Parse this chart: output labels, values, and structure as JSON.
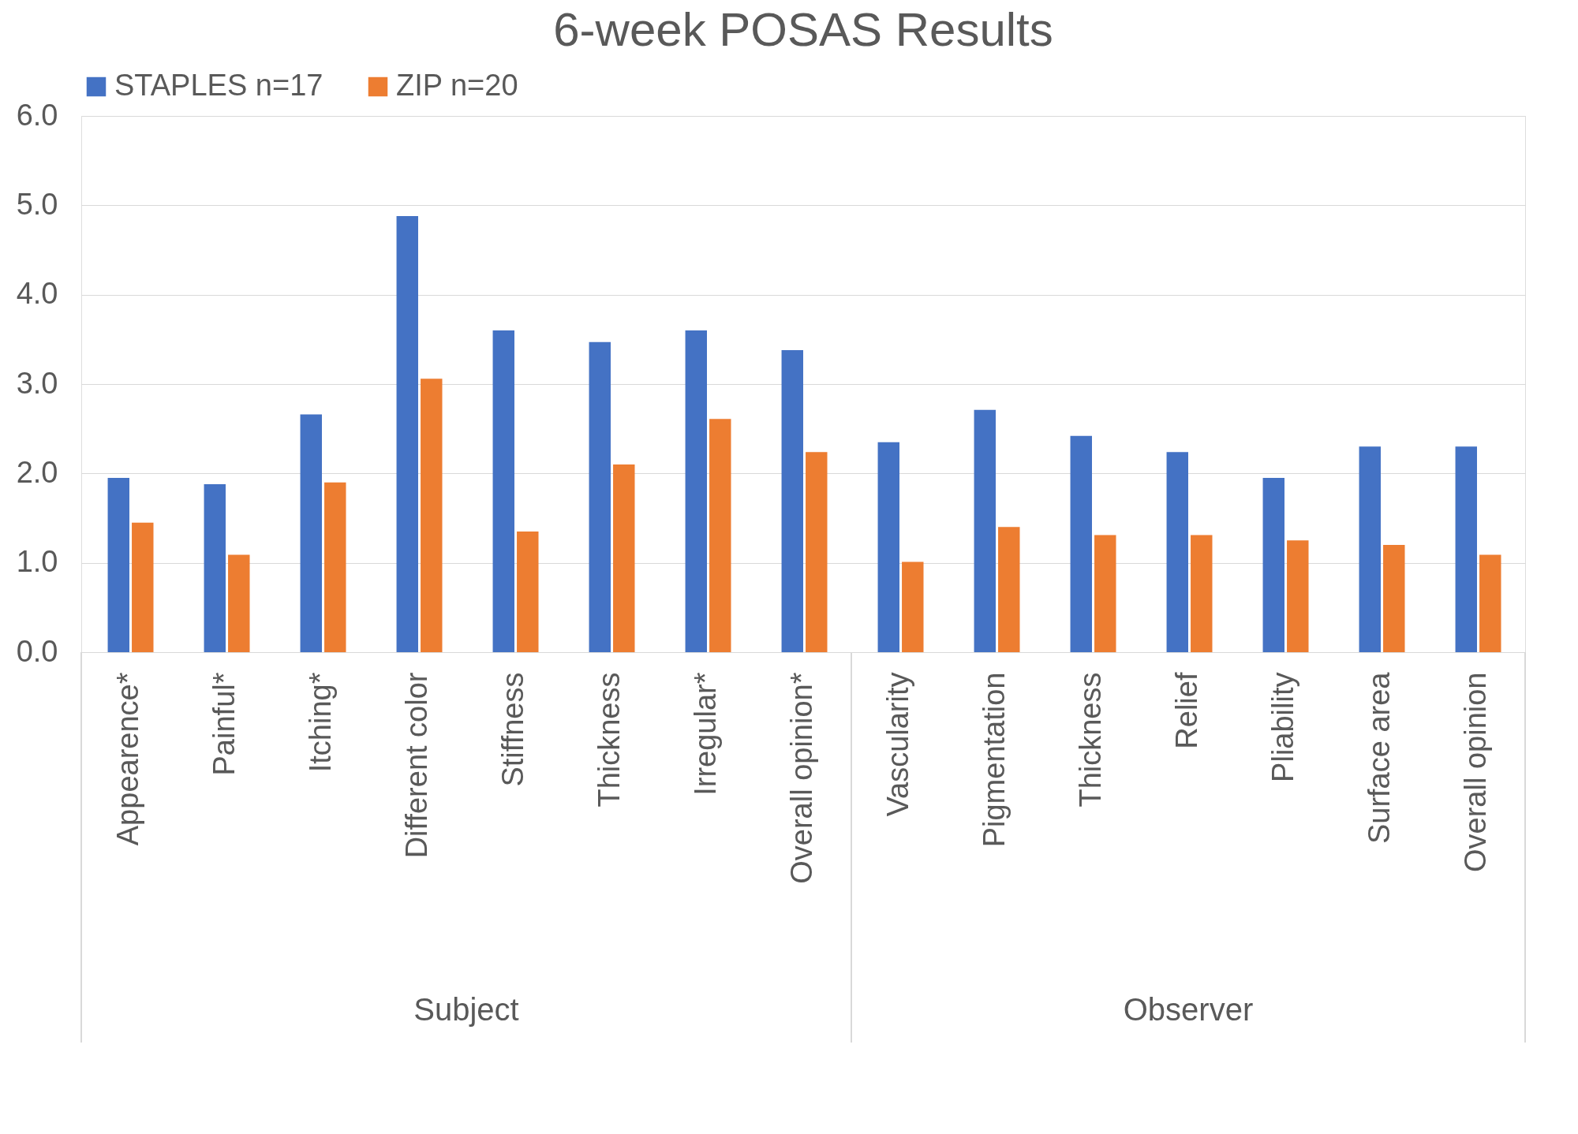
{
  "chart_data": {
    "type": "bar",
    "title": "6-week POSAS Results",
    "categories": [
      "Appearence*",
      "Painful*",
      "Itching*",
      "Different color",
      "Stiffness",
      "Thickness",
      "Irregular*",
      "Overall opinion*",
      "Vascularity",
      "Pigmentation",
      "Thickness",
      "Relief",
      "Pliability",
      "Surface area",
      "Overall opinion"
    ],
    "series": [
      {
        "name": "STAPLES n=17",
        "color": "#4472c4",
        "values": [
          1.95,
          1.88,
          2.66,
          4.88,
          3.6,
          3.47,
          3.6,
          3.38,
          2.35,
          2.71,
          2.42,
          2.24,
          1.95,
          2.3,
          2.3
        ]
      },
      {
        "name": "ZIP n=20",
        "color": "#ed7d31",
        "values": [
          1.45,
          1.09,
          1.9,
          3.06,
          1.35,
          2.1,
          2.61,
          2.24,
          1.01,
          1.4,
          1.31,
          1.31,
          1.25,
          1.2,
          1.09
        ]
      }
    ],
    "ylim": [
      0,
      6
    ],
    "yticks": [
      {
        "value": 0,
        "label": "0.0"
      },
      {
        "value": 1,
        "label": "1.0"
      },
      {
        "value": 2,
        "label": "2.0"
      },
      {
        "value": 3,
        "label": "3.0"
      },
      {
        "value": 4,
        "label": "4.0"
      },
      {
        "value": 5,
        "label": "5.0"
      },
      {
        "value": 6,
        "label": "6.0"
      }
    ],
    "grid": "y",
    "legend": "top",
    "annotations": [
      "Subject",
      "Observer"
    ]
  }
}
